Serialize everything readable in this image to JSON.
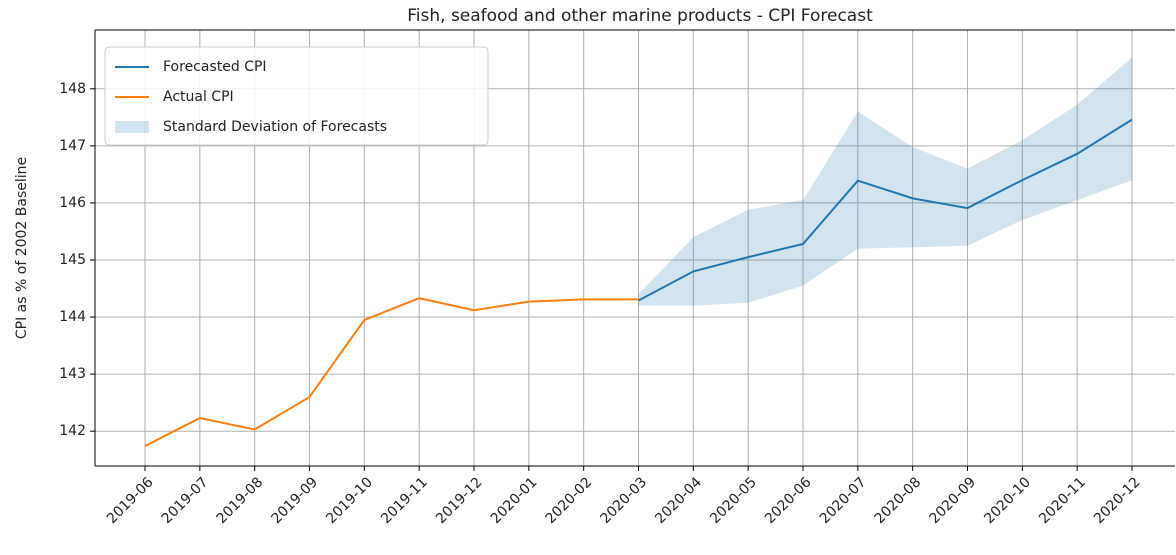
{
  "chart_data": {
    "type": "line",
    "title": "Fish, seafood and other marine products - CPI Forecast",
    "y_label": "CPI as % of 2002 Baseline",
    "categories": [
      "2019-06",
      "2019-07",
      "2019-08",
      "2019-09",
      "2019-10",
      "2019-11",
      "2019-12",
      "2020-01",
      "2020-02",
      "2020-03",
      "2020-04",
      "2020-05",
      "2020-06",
      "2020-07",
      "2020-08",
      "2020-09",
      "2020-10",
      "2020-11",
      "2020-12"
    ],
    "series": [
      {
        "name": "Forecasted CPI",
        "color": "#1f77b4",
        "values": [
          null,
          null,
          null,
          null,
          null,
          null,
          null,
          null,
          null,
          144.29,
          144.8,
          145.05,
          145.28,
          146.39,
          146.08,
          145.91,
          146.4,
          146.86,
          147.46
        ]
      },
      {
        "name": "Actual CPI",
        "color": "#ff7f0e",
        "values": [
          141.74,
          142.23,
          142.03,
          142.6,
          143.95,
          144.33,
          144.12,
          144.27,
          144.31,
          144.31,
          null,
          null,
          null,
          null,
          null,
          null,
          null,
          null,
          null
        ]
      }
    ],
    "band": {
      "name": "Standard Deviation of Forecasts",
      "color": "#1f77b4",
      "lower": [
        null,
        null,
        null,
        null,
        null,
        null,
        null,
        null,
        null,
        144.2,
        144.2,
        144.25,
        144.55,
        145.2,
        145.22,
        145.25,
        145.7,
        146.05,
        146.4
      ],
      "upper": [
        null,
        null,
        null,
        null,
        null,
        null,
        null,
        null,
        null,
        144.4,
        145.4,
        145.88,
        146.05,
        147.6,
        146.98,
        146.6,
        147.1,
        147.72,
        148.55
      ]
    },
    "ylim": [
      141.39,
      149.03
    ],
    "yticks": [
      142,
      143,
      144,
      145,
      146,
      147,
      148
    ],
    "grid": true,
    "legend": "upper left"
  }
}
